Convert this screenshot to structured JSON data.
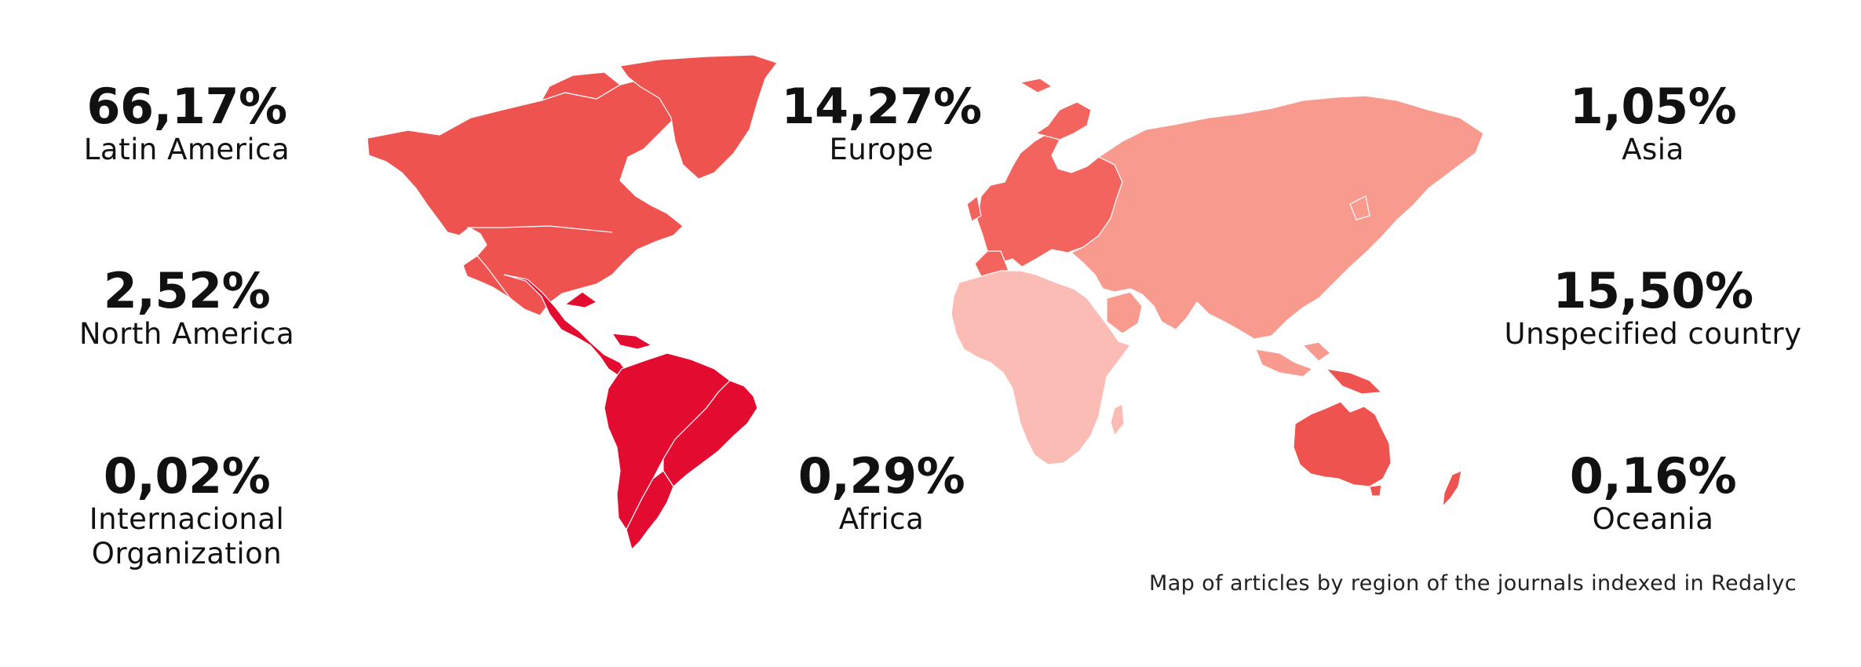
{
  "caption": "Map of articles by region of the journals indexed in Redalyc",
  "regions": {
    "latin_america": {
      "label": "Latin America",
      "percent": "66,17%",
      "value": 66.17,
      "color": "#e30b2f"
    },
    "north_america": {
      "label": "North America",
      "percent": "2,52%",
      "value": 2.52,
      "color": "#ef5350"
    },
    "international": {
      "label": "Internacional Organization",
      "percent": "0,02%",
      "value": 0.02
    },
    "europe": {
      "label": "Europe",
      "percent": "14,27%",
      "value": 14.27,
      "color": "#f4645e"
    },
    "africa": {
      "label": "Africa",
      "percent": "0,29%",
      "value": 0.29,
      "color": "#fbbcb6"
    },
    "asia": {
      "label": "Asia",
      "percent": "1,05%",
      "value": 1.05,
      "color": "#f99a8f"
    },
    "unspecified": {
      "label": "Unspecified country",
      "percent": "15,50%",
      "value": 15.5
    },
    "oceania": {
      "label": "Oceania",
      "percent": "0,16%",
      "value": 0.16,
      "color": "#ef5350"
    }
  }
}
